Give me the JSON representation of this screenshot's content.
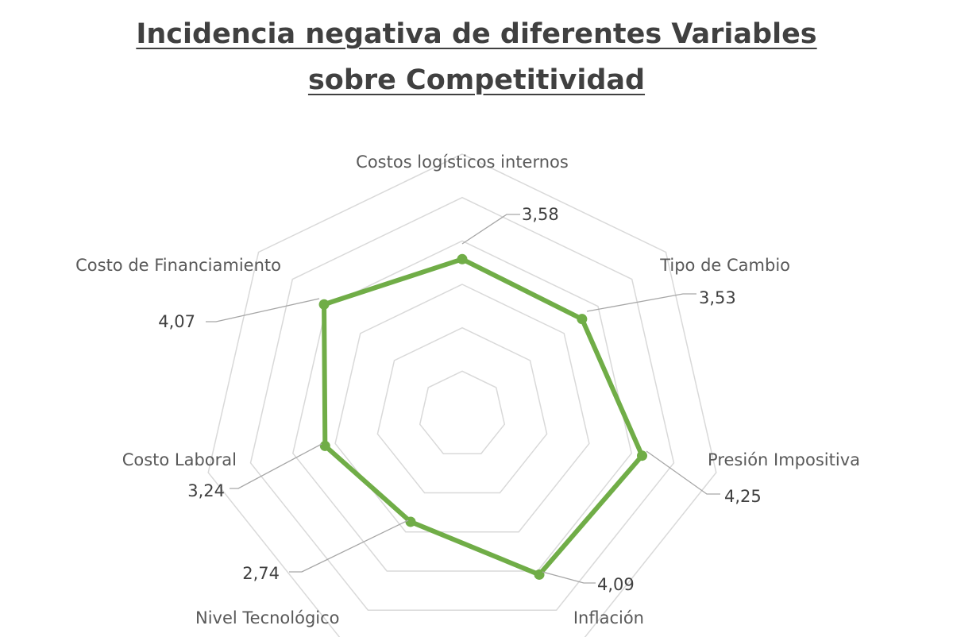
{
  "chart_data": {
    "type": "radar",
    "title_line1": "Incidencia negativa de diferentes Variables",
    "title_line2": "sobre Competitividad",
    "categories": [
      "Costos logísticos internos",
      "Tipo de Cambio",
      "Presión Impositiva",
      "Inflación",
      "Nivel Tecnológico",
      "Costo Laboral",
      "Costo de Financiamiento"
    ],
    "values": [
      3.58,
      3.53,
      4.25,
      4.09,
      2.74,
      3.24,
      4.07
    ],
    "value_labels": [
      "3,58",
      "3,53",
      "4,25",
      "4,09",
      "2,74",
      "3,24",
      "4,07"
    ],
    "rlim": [
      0,
      6
    ],
    "grid_levels": [
      1,
      2,
      3,
      4,
      5,
      6
    ],
    "grid": true,
    "legend": "none",
    "series_color": "#70ad47",
    "grid_color": "#d9d9d9",
    "leader_color": "#a6a6a6"
  }
}
